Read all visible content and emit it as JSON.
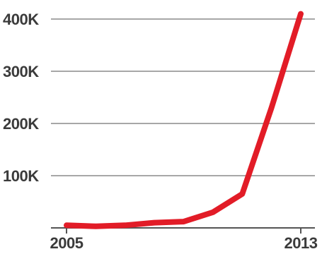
{
  "chart_data": {
    "type": "line",
    "title": "",
    "xlabel": "",
    "ylabel": "",
    "x": [
      2005,
      2006,
      2007,
      2008,
      2009,
      2010,
      2011,
      2012,
      2013
    ],
    "series": [
      {
        "values": [
          5000,
          3000,
          5000,
          10000,
          12000,
          30000,
          65000,
          230000,
          410000
        ]
      }
    ],
    "xlim": [
      2005,
      2013
    ],
    "ylim": [
      0,
      400000
    ],
    "x_tick_labels": [
      "2005",
      "2013"
    ],
    "y_ticks": [
      100000,
      200000,
      300000,
      400000
    ],
    "y_tick_labels": [
      "100K",
      "200K",
      "300K",
      "400K"
    ],
    "grid": true,
    "legend": "none",
    "colors": {
      "line": "#e21c27",
      "grid": "#8a8a8a",
      "text": "#3b3b3b"
    }
  }
}
